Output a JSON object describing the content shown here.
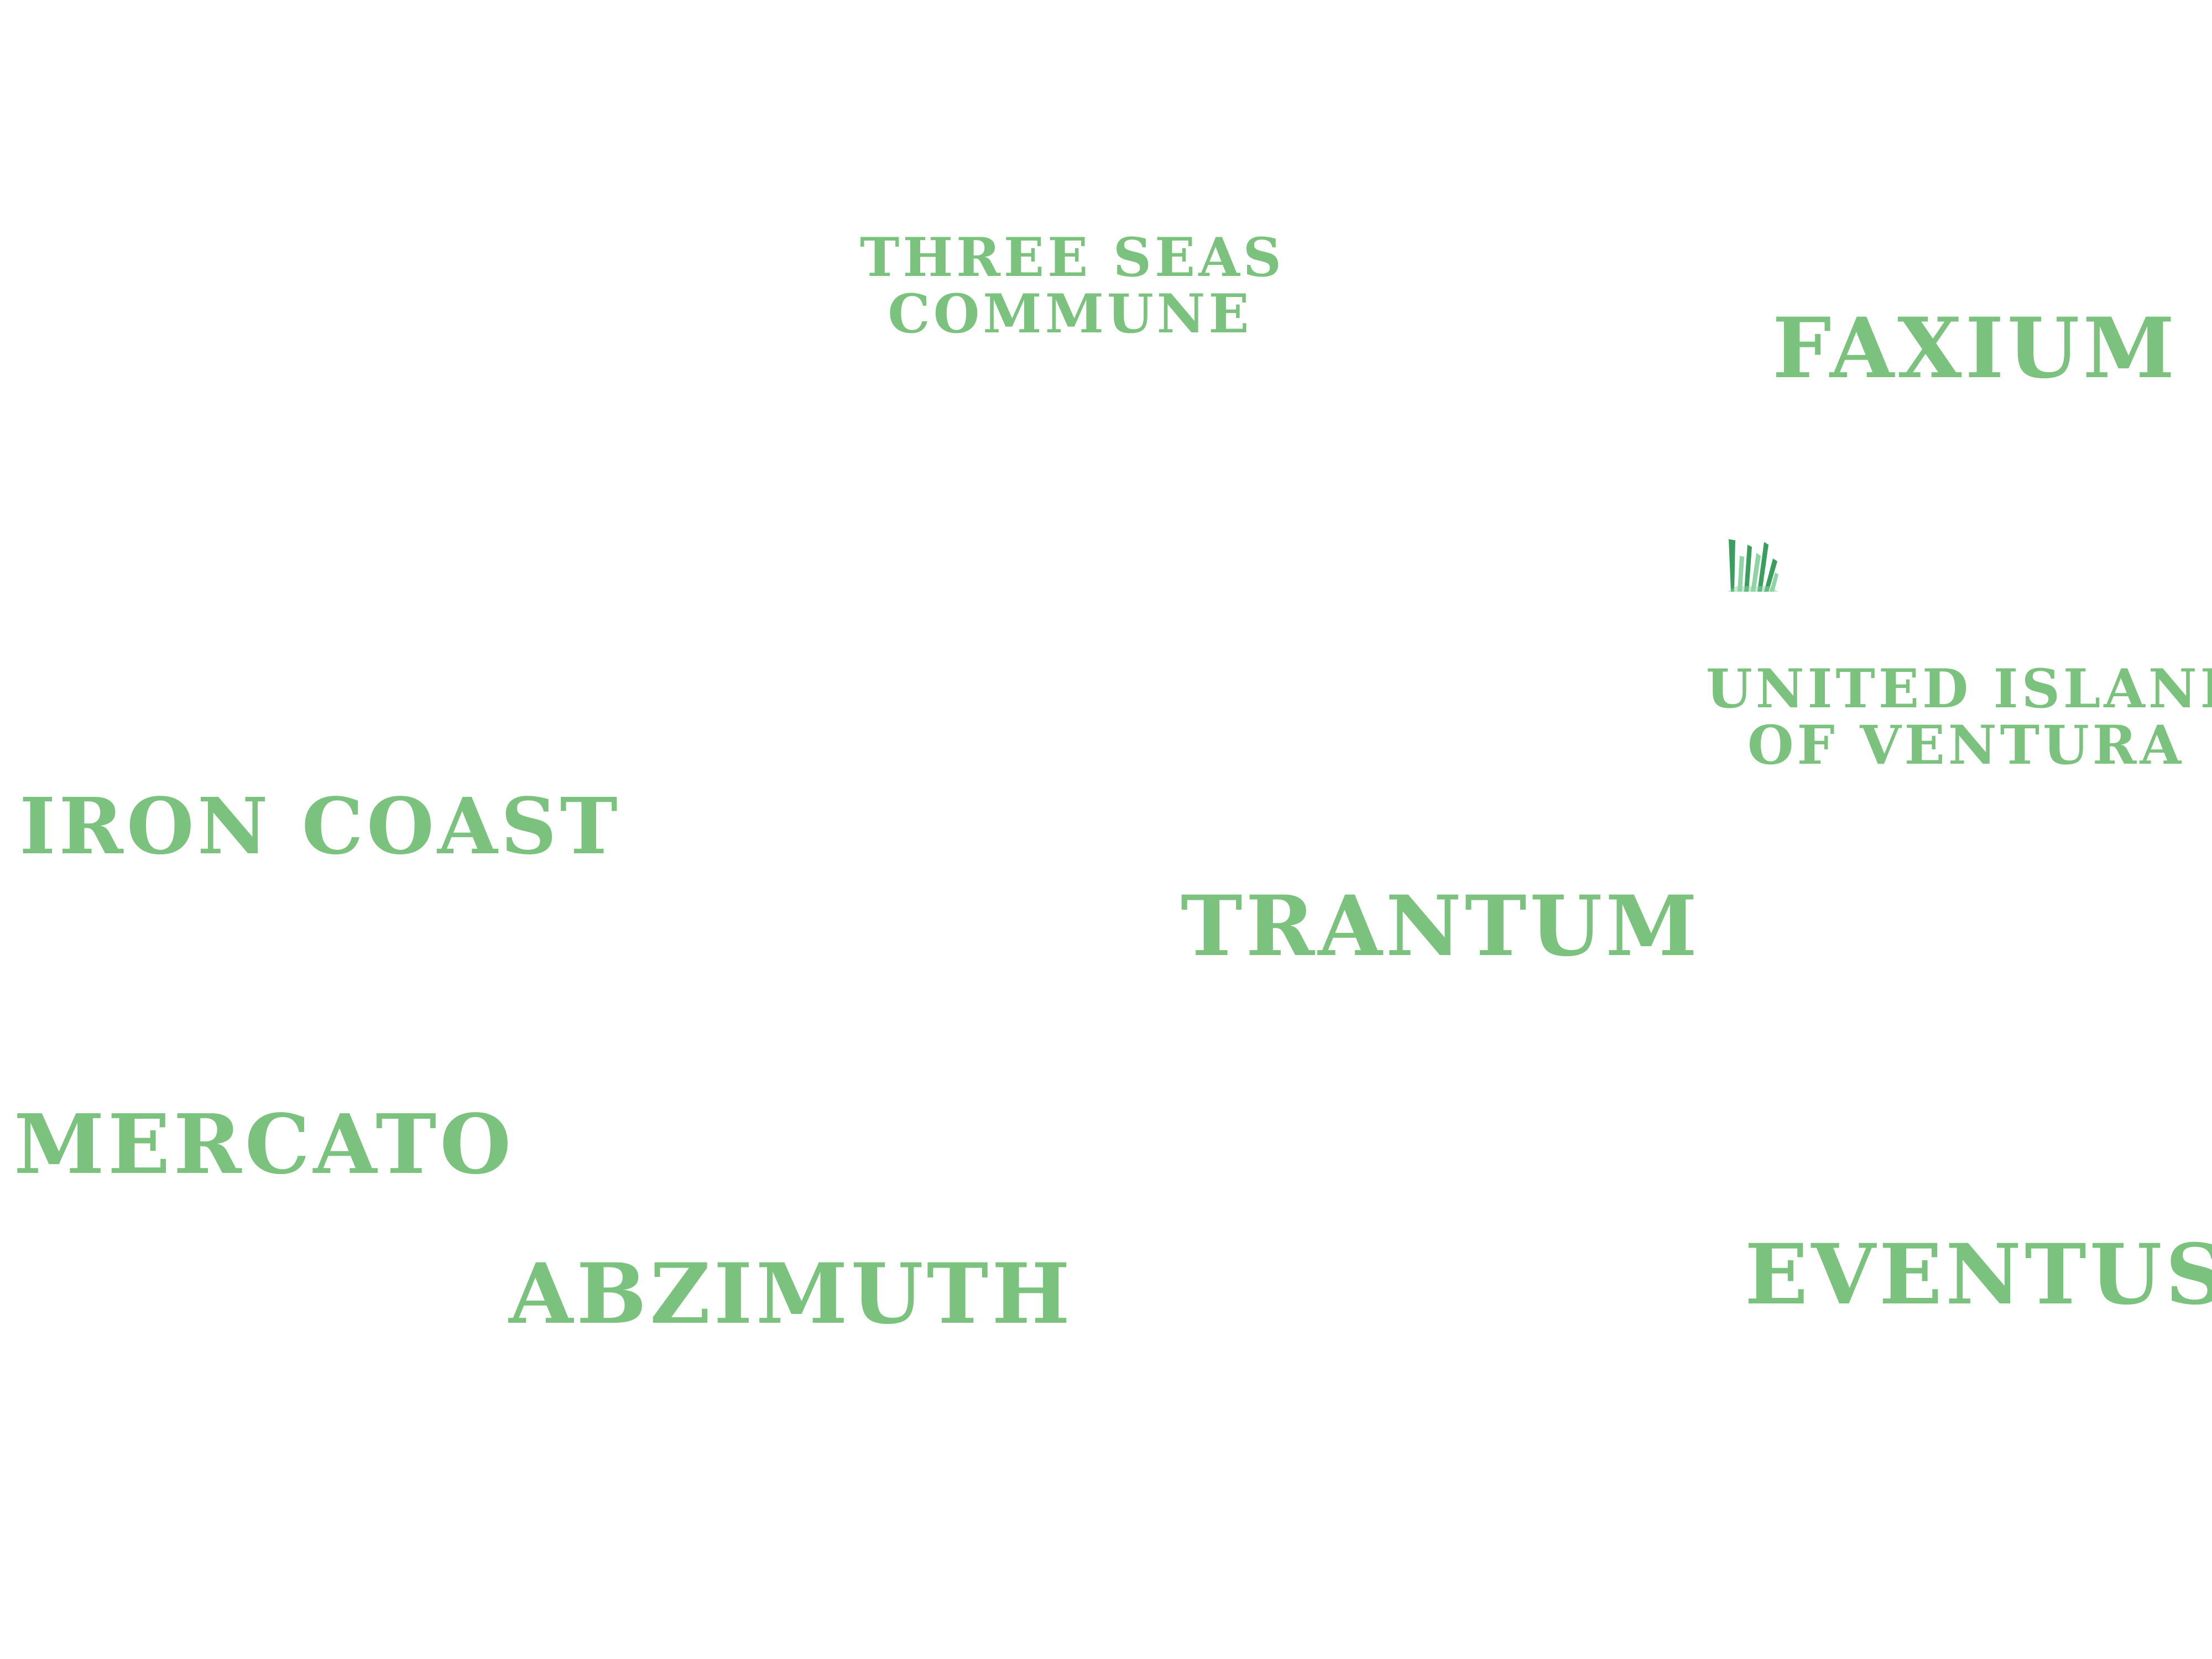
{
  "colors": {
    "background": "#ffffff",
    "label": "#7bc27e",
    "grass_dark": "#3a9e5f",
    "grass_light": "#8fd3a6"
  },
  "map": {
    "regions": [
      {
        "id": "three-seas",
        "lines": [
          "THREE SEAS",
          "COMMUNE"
        ]
      },
      {
        "id": "faxium",
        "name": "FAXIUM"
      },
      {
        "id": "united",
        "lines": [
          "UNITED ISLANDS",
          "OF VENTURA"
        ]
      },
      {
        "id": "iron-coast",
        "name": "IRON COAST"
      },
      {
        "id": "trantum",
        "name": "TRANTUM"
      },
      {
        "id": "mercato",
        "name": "MERCATO"
      },
      {
        "id": "abzimuth",
        "name": "ABZIMUTH"
      },
      {
        "id": "eventus",
        "name": "EVENTUS"
      }
    ],
    "markers": [
      {
        "id": "grass",
        "icon": "grass-tuft-icon"
      }
    ]
  }
}
